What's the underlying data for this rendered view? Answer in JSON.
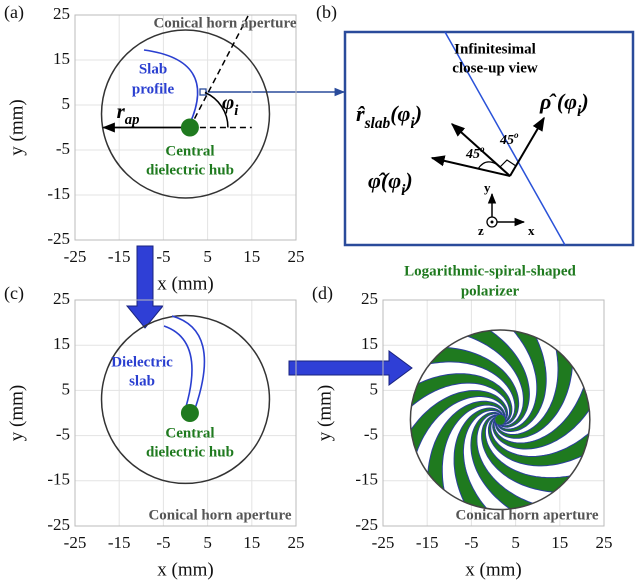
{
  "panels": [
    {
      "label": "(a)",
      "xlabel": "x (mm)",
      "ylabel": "y (mm)",
      "xlim": [
        -25,
        25
      ],
      "ylim": [
        -25,
        25
      ],
      "xticks": [
        -25,
        -15,
        -5,
        5,
        15,
        25
      ],
      "yticks": [
        -25,
        -15,
        -5,
        5,
        15,
        25
      ],
      "aperture": "Conical horn aperture",
      "slab": [
        "Slab",
        "profile"
      ],
      "hub": [
        "Central",
        "dielectric hub"
      ],
      "r_ap": {
        "a": "r",
        "sub": "ap"
      },
      "phi": {
        "a": "φ",
        "sub": "i"
      }
    },
    {
      "label": "(b)",
      "title": [
        "Infinitesimal",
        "close-up view"
      ],
      "r_slab": {
        "a": "r̂",
        "sub": "slab",
        "b": "(φ",
        "sub2": "i",
        "c": ")"
      },
      "rho": {
        "a": "ρ̂ (φ",
        "sub": "i",
        "b": ")"
      },
      "phi_hat": {
        "a": "φ̂(φ",
        "sub": "i",
        "b": ")"
      },
      "angle1": {
        "a": "45",
        "sup": "o"
      },
      "angle2": {
        "a": "45",
        "sup": "o"
      },
      "axis_y": "y",
      "axis_z": "z",
      "axis_x": "x"
    },
    {
      "label": "(c)",
      "xlabel": "x (mm)",
      "ylabel": "y (mm)",
      "xlim": [
        -25,
        25
      ],
      "ylim": [
        -25,
        25
      ],
      "xticks": [
        -25,
        -15,
        -5,
        5,
        15,
        25
      ],
      "yticks": [
        -25,
        -15,
        -5,
        5,
        15,
        25
      ],
      "slab": [
        "Dielectric",
        "slab"
      ],
      "hub": [
        "Central",
        "dielectric hub"
      ],
      "aperture": "Conical horn aperture"
    },
    {
      "label": "(d)",
      "title": [
        "Logarithmic-spiral-shaped",
        "polarizer"
      ],
      "xlabel": "x (mm)",
      "ylabel": "y (mm)",
      "xlim": [
        -25,
        25
      ],
      "ylim": [
        -25,
        25
      ],
      "xticks": [
        -25,
        -15,
        -5,
        5,
        15,
        25
      ],
      "yticks": [
        -25,
        -15,
        -5,
        5,
        15,
        25
      ],
      "aperture": "Conical horn aperture"
    }
  ]
}
